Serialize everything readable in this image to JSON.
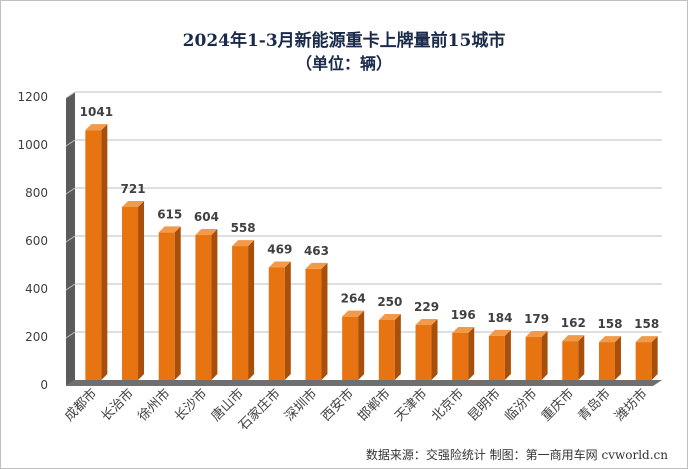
{
  "title": "2024年1-3月新能源重卡上牌量前15城市",
  "subtitle": "（单位：辆）",
  "source": "数据来源：交强险统计   制图：第一商用车网 cvworld.cn",
  "colors": {
    "bar_front": "#e87311",
    "bar_side": "#a8500b",
    "bar_top": "#f39a4a",
    "wall": "#5b5b5b",
    "floor": "#6f6f6f",
    "gridline": "#bfbfbf",
    "label": "#404040"
  },
  "chart_data": {
    "type": "bar",
    "title": "2024年1-3月新能源重卡上牌量前15城市",
    "subtitle": "（单位：辆）",
    "xlabel": "",
    "ylabel": "",
    "ylim": [
      0,
      1200
    ],
    "yticks": [
      "0",
      "200",
      "400",
      "600",
      "800",
      "1000",
      "1200"
    ],
    "grid": true,
    "categories": [
      "成都市",
      "长治市",
      "徐州市",
      "长沙市",
      "唐山市",
      "石家庄市",
      "深圳市",
      "西安市",
      "邯郸市",
      "天津市",
      "北京市",
      "昆明市",
      "临汾市",
      "重庆市",
      "青岛市",
      "潍坊市"
    ],
    "values": [
      1041,
      721,
      615,
      604,
      558,
      469,
      463,
      264,
      250,
      229,
      196,
      184,
      179,
      162,
      158,
      158
    ],
    "data_labels": [
      "1041",
      "721",
      "615",
      "604",
      "558",
      "469",
      "463",
      "264",
      "250",
      "229",
      "196",
      "184",
      "179",
      "162",
      "158",
      "158"
    ]
  }
}
